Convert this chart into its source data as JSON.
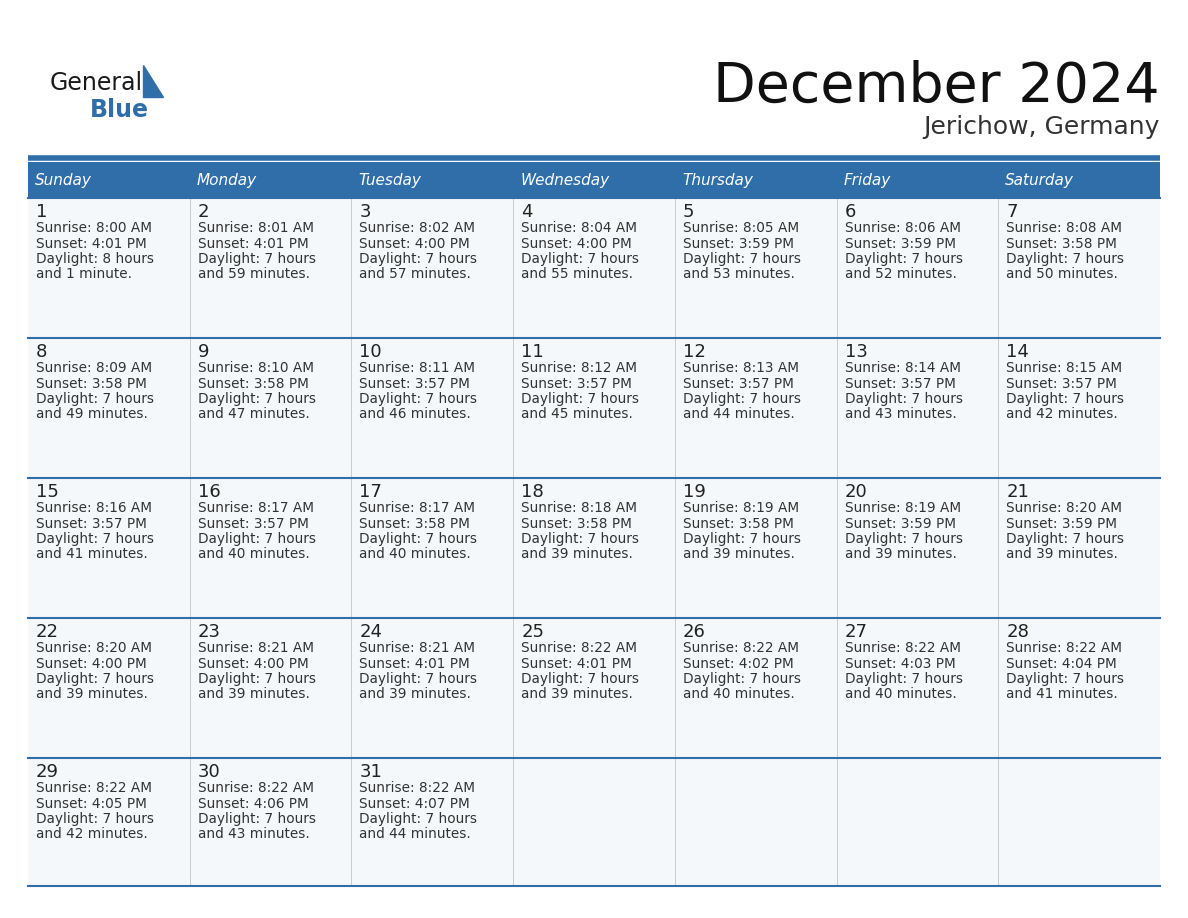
{
  "title": "December 2024",
  "subtitle": "Jerichow, Germany",
  "days_of_week": [
    "Sunday",
    "Monday",
    "Tuesday",
    "Wednesday",
    "Thursday",
    "Friday",
    "Saturday"
  ],
  "header_bg": "#2F6EA8",
  "header_text": "#FFFFFF",
  "row_separator_color": "#2F6EA8",
  "cell_bg": "#F5F8FA",
  "day_num_color": "#222222",
  "text_color": "#333333",
  "title_color": "#111111",
  "subtitle_color": "#333333",
  "calendar_data": [
    [
      {
        "day": 1,
        "sunrise": "8:00 AM",
        "sunset": "4:01 PM",
        "daylight_line1": "Daylight: 8 hours",
        "daylight_line2": "and 1 minute."
      },
      {
        "day": 2,
        "sunrise": "8:01 AM",
        "sunset": "4:01 PM",
        "daylight_line1": "Daylight: 7 hours",
        "daylight_line2": "and 59 minutes."
      },
      {
        "day": 3,
        "sunrise": "8:02 AM",
        "sunset": "4:00 PM",
        "daylight_line1": "Daylight: 7 hours",
        "daylight_line2": "and 57 minutes."
      },
      {
        "day": 4,
        "sunrise": "8:04 AM",
        "sunset": "4:00 PM",
        "daylight_line1": "Daylight: 7 hours",
        "daylight_line2": "and 55 minutes."
      },
      {
        "day": 5,
        "sunrise": "8:05 AM",
        "sunset": "3:59 PM",
        "daylight_line1": "Daylight: 7 hours",
        "daylight_line2": "and 53 minutes."
      },
      {
        "day": 6,
        "sunrise": "8:06 AM",
        "sunset": "3:59 PM",
        "daylight_line1": "Daylight: 7 hours",
        "daylight_line2": "and 52 minutes."
      },
      {
        "day": 7,
        "sunrise": "8:08 AM",
        "sunset": "3:58 PM",
        "daylight_line1": "Daylight: 7 hours",
        "daylight_line2": "and 50 minutes."
      }
    ],
    [
      {
        "day": 8,
        "sunrise": "8:09 AM",
        "sunset": "3:58 PM",
        "daylight_line1": "Daylight: 7 hours",
        "daylight_line2": "and 49 minutes."
      },
      {
        "day": 9,
        "sunrise": "8:10 AM",
        "sunset": "3:58 PM",
        "daylight_line1": "Daylight: 7 hours",
        "daylight_line2": "and 47 minutes."
      },
      {
        "day": 10,
        "sunrise": "8:11 AM",
        "sunset": "3:57 PM",
        "daylight_line1": "Daylight: 7 hours",
        "daylight_line2": "and 46 minutes."
      },
      {
        "day": 11,
        "sunrise": "8:12 AM",
        "sunset": "3:57 PM",
        "daylight_line1": "Daylight: 7 hours",
        "daylight_line2": "and 45 minutes."
      },
      {
        "day": 12,
        "sunrise": "8:13 AM",
        "sunset": "3:57 PM",
        "daylight_line1": "Daylight: 7 hours",
        "daylight_line2": "and 44 minutes."
      },
      {
        "day": 13,
        "sunrise": "8:14 AM",
        "sunset": "3:57 PM",
        "daylight_line1": "Daylight: 7 hours",
        "daylight_line2": "and 43 minutes."
      },
      {
        "day": 14,
        "sunrise": "8:15 AM",
        "sunset": "3:57 PM",
        "daylight_line1": "Daylight: 7 hours",
        "daylight_line2": "and 42 minutes."
      }
    ],
    [
      {
        "day": 15,
        "sunrise": "8:16 AM",
        "sunset": "3:57 PM",
        "daylight_line1": "Daylight: 7 hours",
        "daylight_line2": "and 41 minutes."
      },
      {
        "day": 16,
        "sunrise": "8:17 AM",
        "sunset": "3:57 PM",
        "daylight_line1": "Daylight: 7 hours",
        "daylight_line2": "and 40 minutes."
      },
      {
        "day": 17,
        "sunrise": "8:17 AM",
        "sunset": "3:58 PM",
        "daylight_line1": "Daylight: 7 hours",
        "daylight_line2": "and 40 minutes."
      },
      {
        "day": 18,
        "sunrise": "8:18 AM",
        "sunset": "3:58 PM",
        "daylight_line1": "Daylight: 7 hours",
        "daylight_line2": "and 39 minutes."
      },
      {
        "day": 19,
        "sunrise": "8:19 AM",
        "sunset": "3:58 PM",
        "daylight_line1": "Daylight: 7 hours",
        "daylight_line2": "and 39 minutes."
      },
      {
        "day": 20,
        "sunrise": "8:19 AM",
        "sunset": "3:59 PM",
        "daylight_line1": "Daylight: 7 hours",
        "daylight_line2": "and 39 minutes."
      },
      {
        "day": 21,
        "sunrise": "8:20 AM",
        "sunset": "3:59 PM",
        "daylight_line1": "Daylight: 7 hours",
        "daylight_line2": "and 39 minutes."
      }
    ],
    [
      {
        "day": 22,
        "sunrise": "8:20 AM",
        "sunset": "4:00 PM",
        "daylight_line1": "Daylight: 7 hours",
        "daylight_line2": "and 39 minutes."
      },
      {
        "day": 23,
        "sunrise": "8:21 AM",
        "sunset": "4:00 PM",
        "daylight_line1": "Daylight: 7 hours",
        "daylight_line2": "and 39 minutes."
      },
      {
        "day": 24,
        "sunrise": "8:21 AM",
        "sunset": "4:01 PM",
        "daylight_line1": "Daylight: 7 hours",
        "daylight_line2": "and 39 minutes."
      },
      {
        "day": 25,
        "sunrise": "8:22 AM",
        "sunset": "4:01 PM",
        "daylight_line1": "Daylight: 7 hours",
        "daylight_line2": "and 39 minutes."
      },
      {
        "day": 26,
        "sunrise": "8:22 AM",
        "sunset": "4:02 PM",
        "daylight_line1": "Daylight: 7 hours",
        "daylight_line2": "and 40 minutes."
      },
      {
        "day": 27,
        "sunrise": "8:22 AM",
        "sunset": "4:03 PM",
        "daylight_line1": "Daylight: 7 hours",
        "daylight_line2": "and 40 minutes."
      },
      {
        "day": 28,
        "sunrise": "8:22 AM",
        "sunset": "4:04 PM",
        "daylight_line1": "Daylight: 7 hours",
        "daylight_line2": "and 41 minutes."
      }
    ],
    [
      {
        "day": 29,
        "sunrise": "8:22 AM",
        "sunset": "4:05 PM",
        "daylight_line1": "Daylight: 7 hours",
        "daylight_line2": "and 42 minutes."
      },
      {
        "day": 30,
        "sunrise": "8:22 AM",
        "sunset": "4:06 PM",
        "daylight_line1": "Daylight: 7 hours",
        "daylight_line2": "and 43 minutes."
      },
      {
        "day": 31,
        "sunrise": "8:22 AM",
        "sunset": "4:07 PM",
        "daylight_line1": "Daylight: 7 hours",
        "daylight_line2": "and 44 minutes."
      },
      null,
      null,
      null,
      null
    ]
  ]
}
